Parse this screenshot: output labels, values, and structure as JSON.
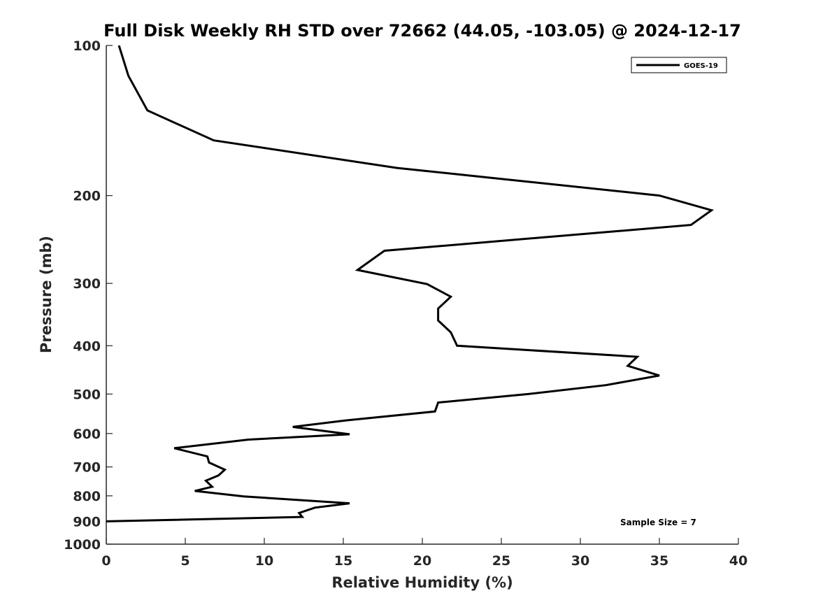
{
  "chart_data": {
    "type": "line",
    "title": "Full Disk Weekly RH STD over 72662 (44.05, -103.05) @ 2024-12-17",
    "xlabel": "Relative Humidity (%)",
    "ylabel": "Pressure (mb)",
    "xlim": [
      0,
      40
    ],
    "ylim": [
      100,
      1000
    ],
    "y_scale": "log",
    "y_reversed": true,
    "x_ticks": [
      "0",
      "5",
      "10",
      "15",
      "20",
      "25",
      "30",
      "35",
      "40"
    ],
    "y_ticks": [
      "100",
      "200",
      "300",
      "400",
      "500",
      "600",
      "700",
      "800",
      "900",
      "1000"
    ],
    "grid": false,
    "legend_position": "top-right",
    "series": [
      {
        "name": "GOES-19",
        "color": "#000000",
        "points": [
          [
            0.8,
            100
          ],
          [
            1.4,
            115
          ],
          [
            2.6,
            135
          ],
          [
            6.8,
            155
          ],
          [
            18.4,
            176
          ],
          [
            35.0,
            200
          ],
          [
            38.3,
            214
          ],
          [
            37.0,
            229
          ],
          [
            17.6,
            258
          ],
          [
            15.9,
            282
          ],
          [
            20.3,
            301
          ],
          [
            21.8,
            319
          ],
          [
            21.0,
            337
          ],
          [
            21.0,
            356
          ],
          [
            21.8,
            376
          ],
          [
            22.2,
            400
          ],
          [
            33.6,
            421
          ],
          [
            33.0,
            439
          ],
          [
            35.0,
            459
          ],
          [
            31.6,
            480
          ],
          [
            26.7,
            500
          ],
          [
            21.0,
            520
          ],
          [
            20.8,
            542
          ],
          [
            15.1,
            565
          ],
          [
            11.8,
            582
          ],
          [
            15.4,
            602
          ],
          [
            9.0,
            617
          ],
          [
            4.3,
            642
          ],
          [
            6.4,
            667
          ],
          [
            6.5,
            686
          ],
          [
            7.5,
            709
          ],
          [
            7.1,
            728
          ],
          [
            6.3,
            746
          ],
          [
            6.7,
            767
          ],
          [
            5.6,
            782
          ],
          [
            8.7,
            802
          ],
          [
            15.4,
            828
          ],
          [
            13.2,
            845
          ],
          [
            12.2,
            866
          ],
          [
            12.4,
            882
          ],
          [
            0.0,
            900
          ]
        ]
      }
    ],
    "annotations": [
      "Sample Size = 7"
    ]
  }
}
